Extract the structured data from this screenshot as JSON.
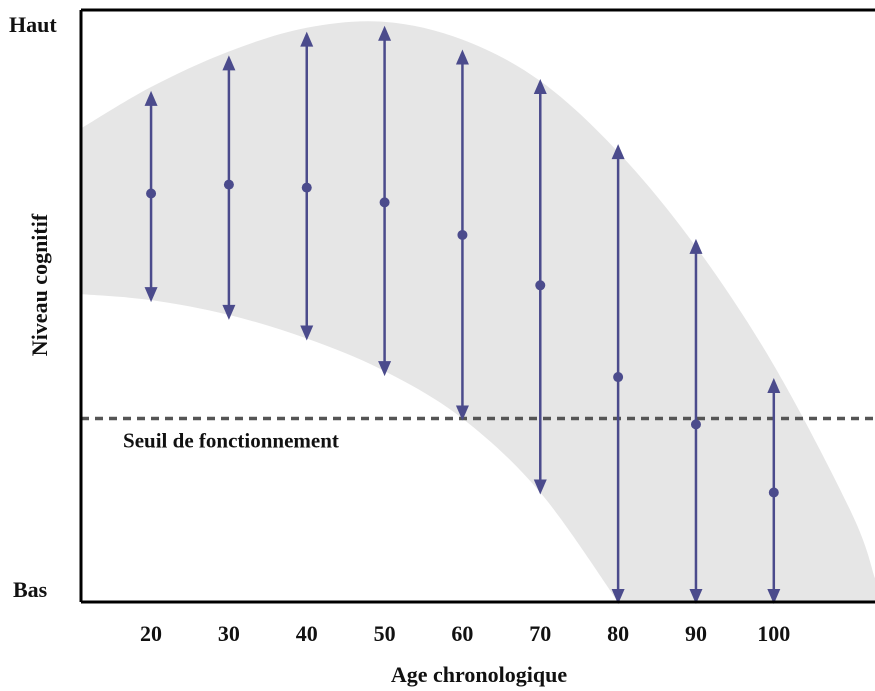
{
  "chart_data": {
    "type": "range",
    "xlabel": "Age chronologique",
    "ylabel": "Niveau cognitif",
    "y_top_label": "Haut",
    "y_bottom_label": "Bas",
    "x": [
      20,
      30,
      40,
      50,
      60,
      70,
      80,
      90,
      100
    ],
    "ylim": [
      0,
      100
    ],
    "xlim": [
      11,
      113
    ],
    "series": [
      {
        "mean": [
          69,
          70.5,
          70,
          67.5,
          62,
          53.5,
          38,
          30,
          18.5
        ],
        "high": [
          86,
          92,
          96,
          97,
          93,
          88,
          77,
          61,
          37.5
        ],
        "low": [
          51,
          48,
          44.5,
          38.5,
          31,
          18.5,
          0,
          0,
          0
        ]
      }
    ],
    "envelope_upper": [
      [
        11,
        80
      ],
      [
        20,
        87
      ],
      [
        30,
        93
      ],
      [
        40,
        97
      ],
      [
        50,
        98
      ],
      [
        60,
        95
      ],
      [
        70,
        88
      ],
      [
        80,
        76
      ],
      [
        90,
        60
      ],
      [
        100,
        40
      ],
      [
        110,
        15
      ],
      [
        113,
        4
      ]
    ],
    "envelope_lower": [
      [
        11,
        52
      ],
      [
        20,
        51
      ],
      [
        30,
        48.5
      ],
      [
        40,
        44.5
      ],
      [
        50,
        39
      ],
      [
        60,
        31
      ],
      [
        70,
        18.5
      ],
      [
        80,
        0
      ]
    ],
    "threshold": {
      "y": 31,
      "label": "Seuil de fonctionnement"
    },
    "colors": {
      "arrows": "#4b4b8c",
      "envelope": "#e6e6e6",
      "threshold": "#555555",
      "axes": "#000000"
    }
  }
}
